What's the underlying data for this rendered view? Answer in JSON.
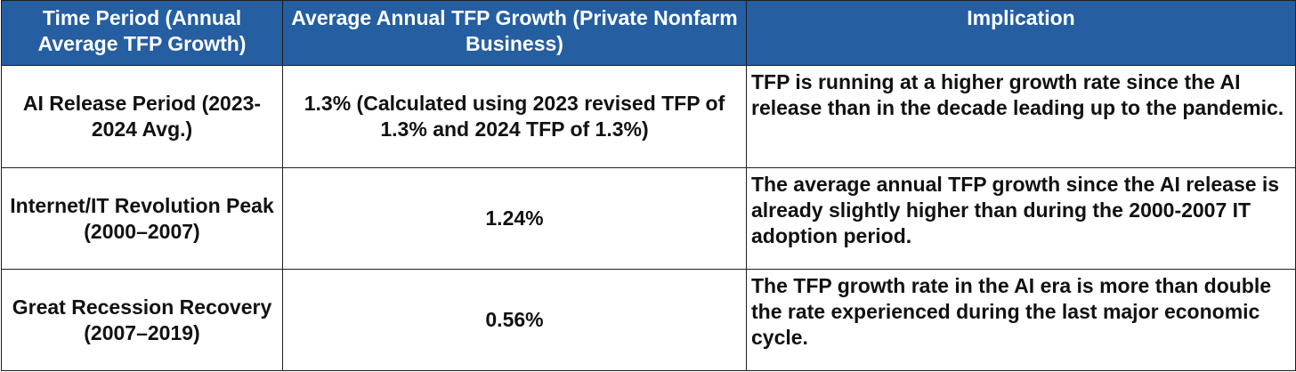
{
  "colors": {
    "header_bg": "#255ea1",
    "header_text": "#ffffff",
    "border": "#1f1f1f",
    "body_text": "#111111"
  },
  "table": {
    "headers": [
      "Time Period (Annual Average TFP Growth)",
      "Average Annual TFP Growth (Private Nonfarm Business)",
      "Implication"
    ],
    "rows": [
      {
        "period": "AI Release Period (2023-2024 Avg.)",
        "growth": "1.3% (Calculated using 2023 revised TFP of 1.3% and 2024 TFP of 1.3%)",
        "implication": "TFP is running at a higher growth rate since the AI release than in the decade leading up to the pandemic."
      },
      {
        "period": "Internet/IT Revolution Peak (2000–2007)",
        "growth": "1.24%",
        "implication": "The average annual TFP growth since the AI release is already slightly higher than during the 2000-2007 IT adoption period."
      },
      {
        "period": "Great Recession Recovery (2007–2019)",
        "growth": "0.56%",
        "implication": "The TFP growth rate in the AI era is more than double the rate experienced during the last major economic cycle."
      }
    ]
  }
}
